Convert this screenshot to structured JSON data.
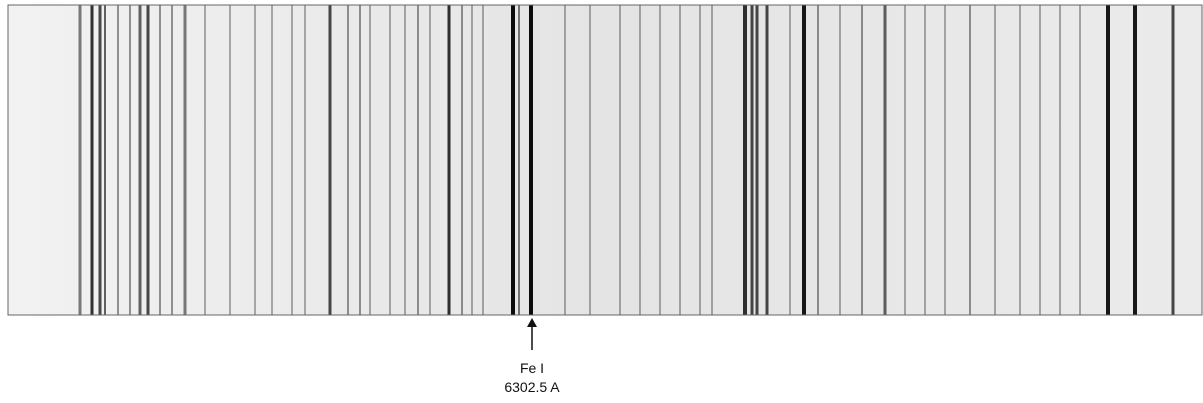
{
  "annotation": {
    "label": "Fe I",
    "wavelength": "6302.5 A"
  }
}
